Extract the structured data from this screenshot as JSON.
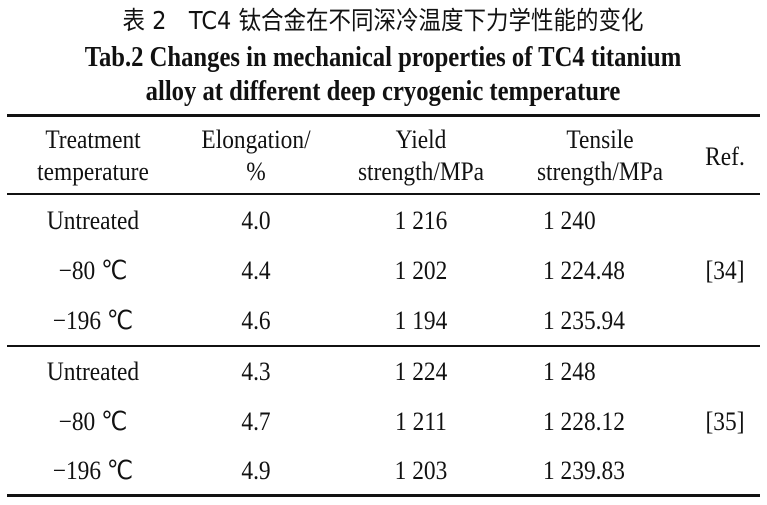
{
  "caption": {
    "chinese": "表 2　TC4 钛合金在不同深冷温度下力学性能的变化",
    "english_line1": "Tab.2 Changes in mechanical properties of TC4 titanium",
    "english_line2": "alloy at different deep cryogenic temperature"
  },
  "table": {
    "headers": [
      [
        "Treatment",
        "temperature"
      ],
      [
        "Elongation/",
        "%"
      ],
      [
        "Yield",
        "strength/MPa"
      ],
      [
        "Tensile",
        "strength/MPa"
      ],
      [
        "Ref."
      ]
    ],
    "groups": [
      {
        "ref": "[34]",
        "rows": [
          [
            "Untreated",
            "4.0",
            "1 216",
            "1 240"
          ],
          [
            "−80 ℃",
            "4.4",
            "1 202",
            "1 224.48"
          ],
          [
            "−196 ℃",
            "4.6",
            "1 194",
            "1 235.94"
          ]
        ]
      },
      {
        "ref": "[35]",
        "rows": [
          [
            "Untreated",
            "4.3",
            "1 224",
            "1 248"
          ],
          [
            "−80 ℃",
            "4.7",
            "1 211",
            "1 228.12"
          ],
          [
            "−196 ℃",
            "4.9",
            "1 203",
            "1 239.83"
          ]
        ]
      }
    ]
  }
}
